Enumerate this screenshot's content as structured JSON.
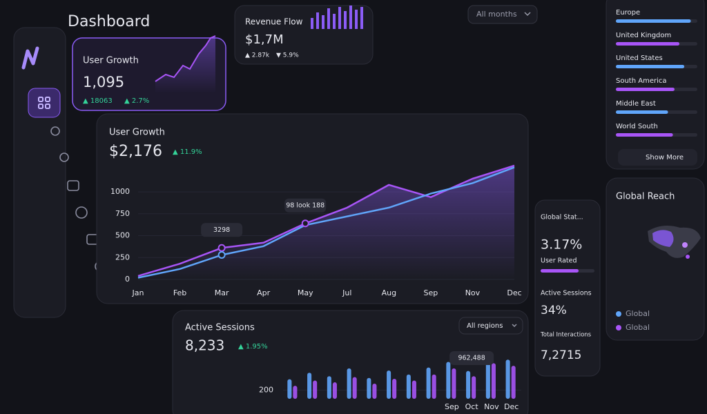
{
  "header": {
    "title": "Dashboard",
    "filter": "All months"
  },
  "user_growth_card": {
    "title": "User Growth",
    "value": "1,095",
    "stats": [
      "▲ 18063",
      "▲ 2.7%"
    ]
  },
  "revenue_card": {
    "title": "Revenue Flow",
    "value": "$1,7M",
    "stats": [
      "▲ 2.87k",
      "▼ 5.9%"
    ]
  },
  "main_chart": {
    "type": "line",
    "title": "User Growth",
    "value": "$2,176",
    "change": "▲ 11.9%",
    "categories": [
      "Jan",
      "Feb",
      "Mar",
      "Apr",
      "May",
      "Jul",
      "Aug",
      "Sep",
      "Nov",
      "Dec"
    ],
    "series": [
      {
        "color": "#a855f7",
        "values": [
          40,
          180,
          360,
          420,
          640,
          820,
          1080,
          940,
          1150,
          1300
        ]
      },
      {
        "color": "#60a5fa",
        "values": [
          20,
          120,
          280,
          380,
          620,
          720,
          820,
          980,
          1100,
          1280
        ]
      }
    ],
    "ylim": [
      0,
      1300
    ],
    "yticks": [
      0,
      250,
      500,
      750,
      1000
    ],
    "grid": true,
    "annotations": [
      "3298",
      "98 look 188"
    ]
  },
  "regions": {
    "items": [
      {
        "label": "Europe",
        "value": 92
      },
      {
        "label": "United Kingdom",
        "value": 78
      },
      {
        "label": "United States",
        "value": 84
      },
      {
        "label": "South America",
        "value": 72
      },
      {
        "label": "Middle East",
        "value": 64
      },
      {
        "label": "World South",
        "value": 70
      }
    ],
    "xlim": [
      0,
      100
    ],
    "button": "Show More"
  },
  "stats_card": {
    "title": "Global Stat...",
    "items": [
      {
        "value": "3.17%",
        "label": "User Rated"
      },
      {
        "label": "Active Sessions",
        "value": "34%"
      },
      {
        "label": "Total Interactions",
        "value": "7,2715"
      }
    ]
  },
  "global_reach": {
    "title": "Global Reach",
    "legend": [
      "Global",
      "Global"
    ]
  },
  "sessions_chart": {
    "type": "bar",
    "title": "Active Sessions",
    "value": "8,233",
    "change": "▲ 1.95%",
    "filter": "All regions",
    "categories": [
      null,
      null,
      null,
      null,
      null,
      null,
      null,
      null,
      "Sep",
      "Oct",
      "Nov",
      "Dec"
    ],
    "series": [
      {
        "color": "#60a5fa",
        "values": [
          450,
          600,
          520,
          700,
          480,
          650,
          560,
          720,
          850,
          640,
          980,
          900
        ]
      },
      {
        "color": "#a855f7",
        "values": [
          300,
          420,
          380,
          500,
          350,
          460,
          420,
          560,
          700,
          520,
          820,
          760
        ]
      }
    ],
    "ylim": [
      0,
      1000
    ],
    "yticks": [
      200
    ],
    "annotations": [
      "962,488"
    ]
  }
}
